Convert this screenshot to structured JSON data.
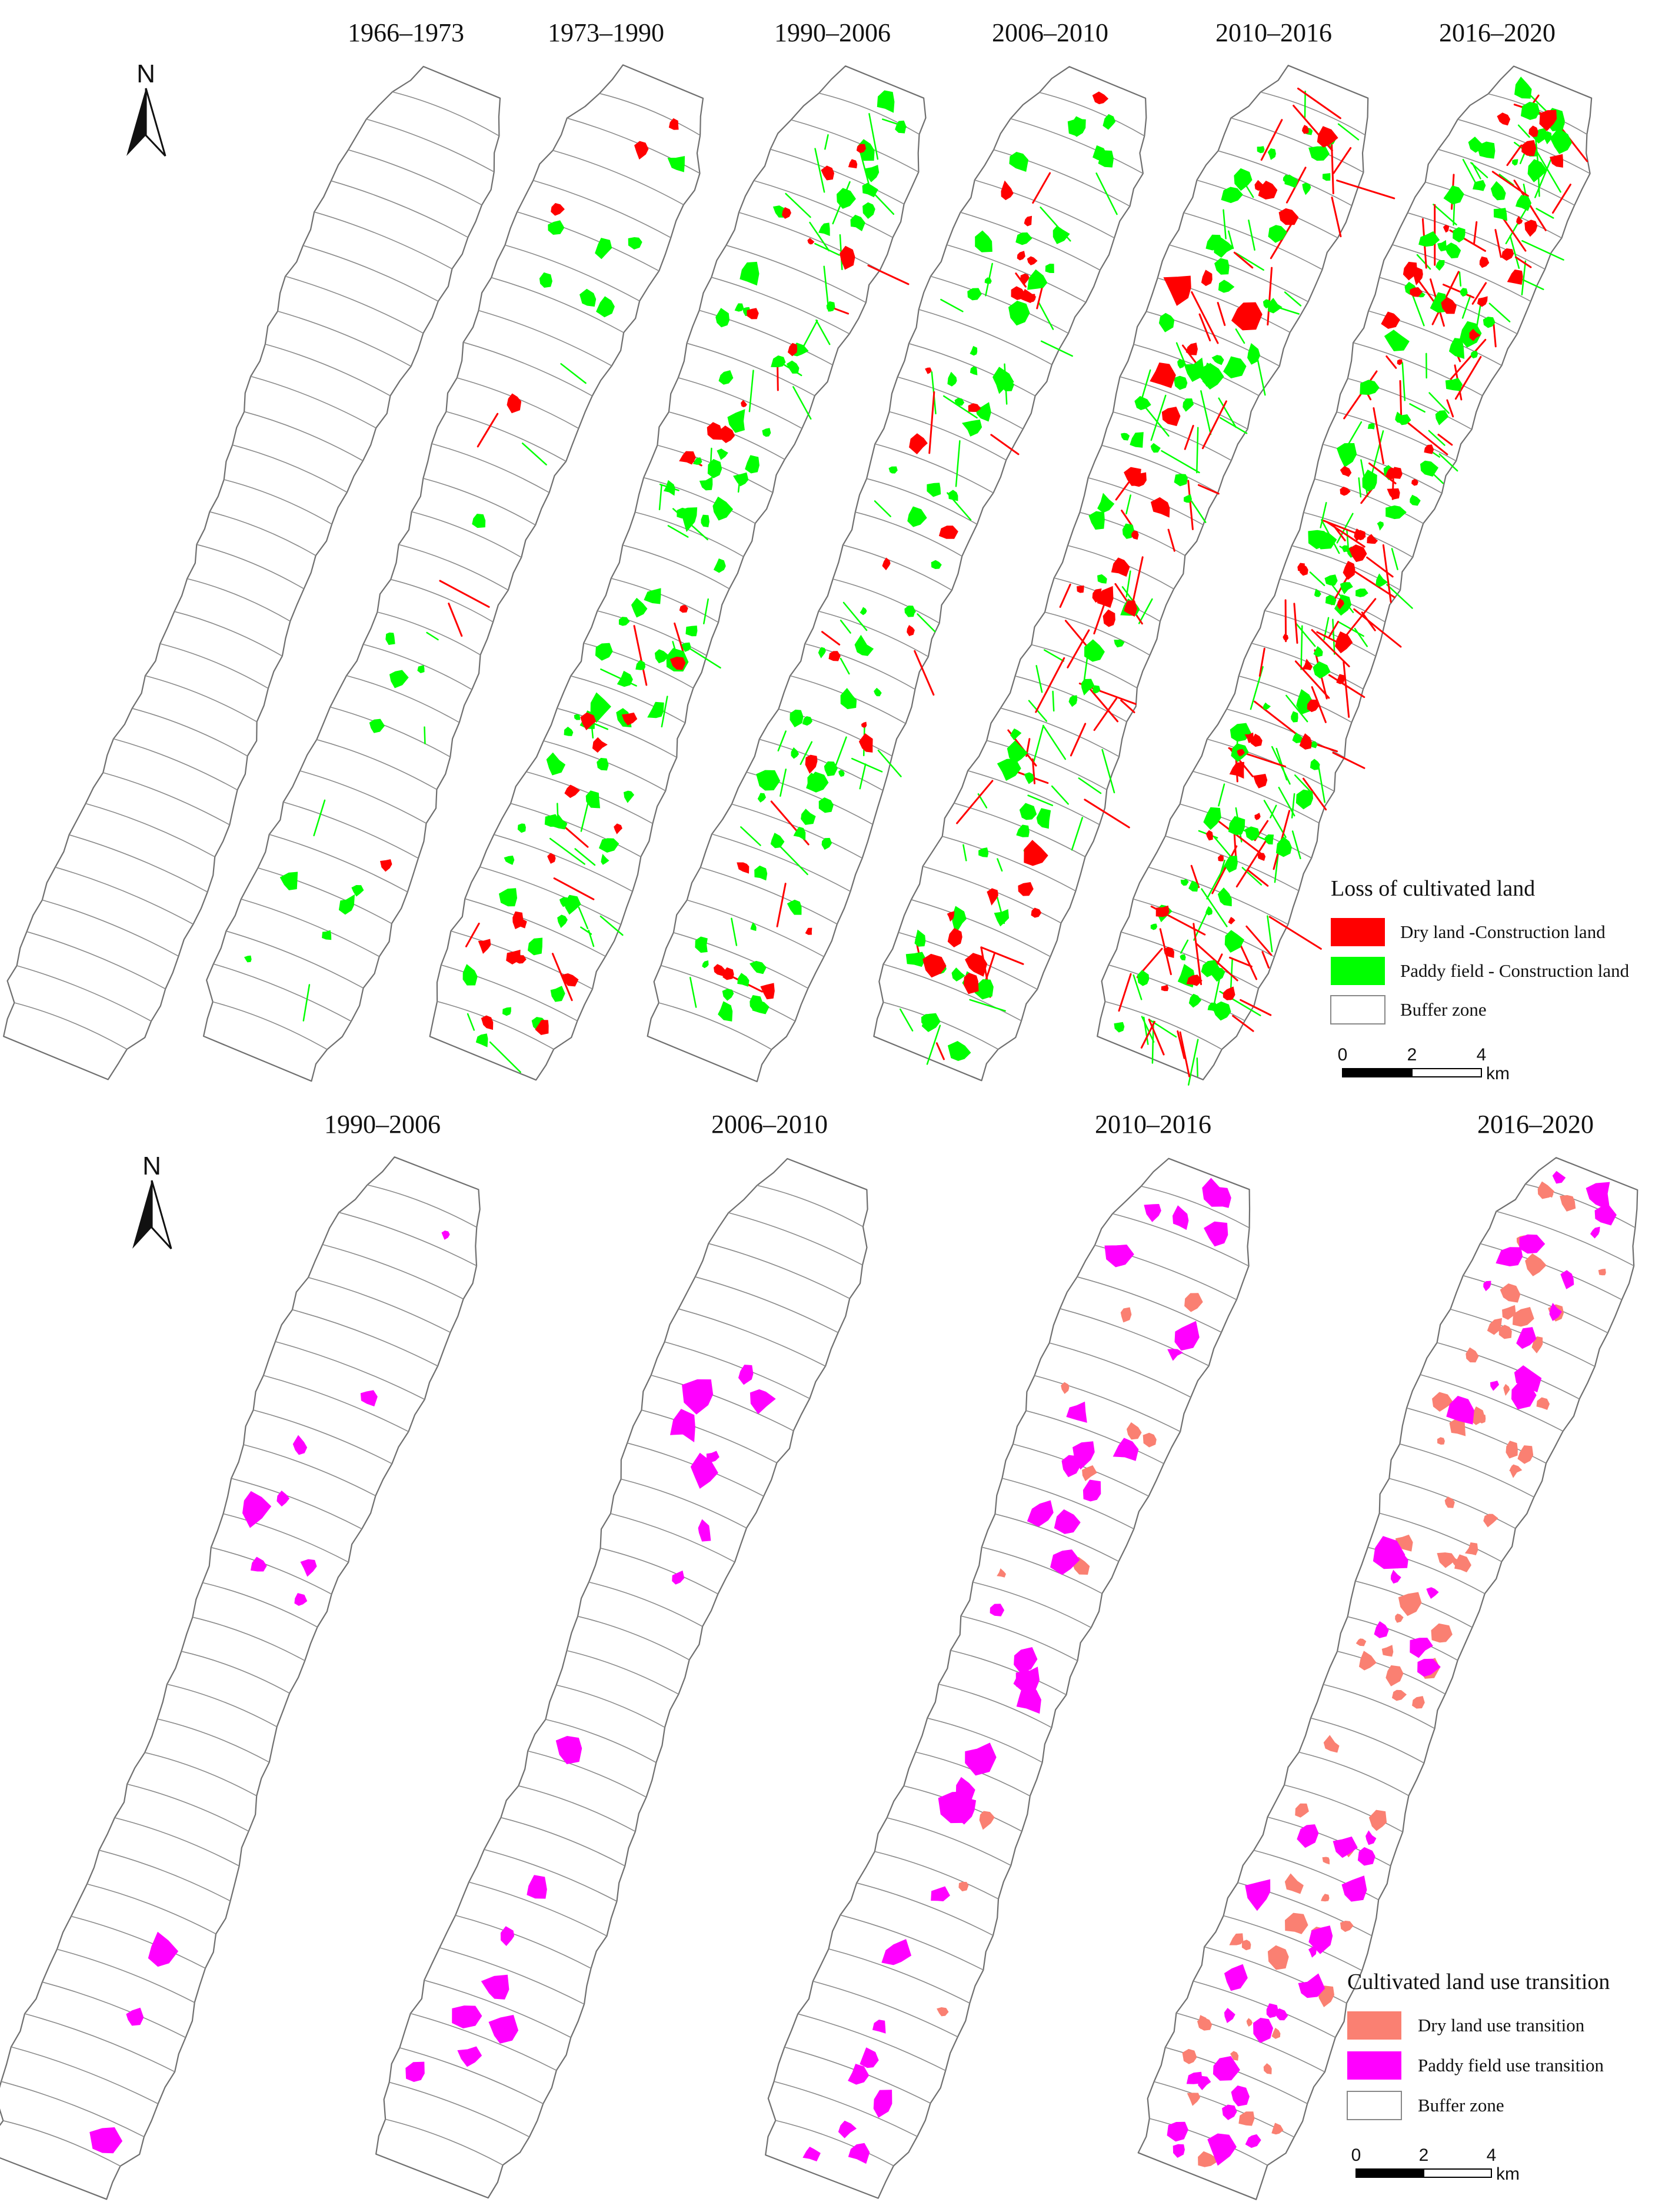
{
  "colors": {
    "dry_loss": "#ff0000",
    "paddy_loss": "#00ff00",
    "dry_transition": "#fa8072",
    "paddy_transition": "#ff00ff",
    "buffer_outline": "#6f6f6f"
  },
  "north_arrow": {
    "label": "N",
    "icon": "north-arrow-icon"
  },
  "top_panel": {
    "periods": [
      {
        "label": "1966–1973",
        "dry_patches": 0,
        "paddy_patches": 0,
        "dry_lines": 0,
        "paddy_lines": 0
      },
      {
        "label": "1973–1990",
        "dry_patches": 5,
        "paddy_patches": 18,
        "dry_lines": 3,
        "paddy_lines": 6
      },
      {
        "label": "1990–2006",
        "dry_patches": 28,
        "paddy_patches": 70,
        "dry_lines": 10,
        "paddy_lines": 40
      },
      {
        "label": "2006–2010",
        "dry_patches": 24,
        "paddy_patches": 60,
        "dry_lines": 10,
        "paddy_lines": 28
      },
      {
        "label": "2010–2016",
        "dry_patches": 30,
        "paddy_patches": 70,
        "dry_lines": 45,
        "paddy_lines": 45
      },
      {
        "label": "2016–2020",
        "dry_patches": 55,
        "paddy_patches": 90,
        "dry_lines": 90,
        "paddy_lines": 90
      }
    ],
    "legend": {
      "title": "Loss of cultivated land",
      "items": [
        {
          "label": "Dry land -Construction land",
          "color": "#ff0000",
          "swatch": "filled"
        },
        {
          "label": "Paddy field - Construction land",
          "color": "#00ff00",
          "swatch": "filled"
        },
        {
          "label": "Buffer zone",
          "color": "#ffffff",
          "swatch": "outline"
        }
      ]
    },
    "scale_bar": {
      "ticks": [
        "0",
        "2",
        "4"
      ],
      "unit": "km"
    }
  },
  "bottom_panel": {
    "periods": [
      {
        "label": "1990–2006",
        "dry_patches": 0,
        "paddy_patches": 11
      },
      {
        "label": "2006–2010",
        "dry_patches": 0,
        "paddy_patches": 16
      },
      {
        "label": "2010–2016",
        "dry_patches": 12,
        "paddy_patches": 34
      },
      {
        "label": "2016–2020",
        "dry_patches": 70,
        "paddy_patches": 45
      }
    ],
    "legend": {
      "title": "Cultivated land use transition",
      "items": [
        {
          "label": "Dry land use transition",
          "color": "#fa8072",
          "swatch": "filled"
        },
        {
          "label": "Paddy field use transition",
          "color": "#ff00ff",
          "swatch": "filled"
        },
        {
          "label": "Buffer zone",
          "color": "#ffffff",
          "swatch": "outline"
        }
      ]
    },
    "scale_bar": {
      "ticks": [
        "0",
        "2",
        "4"
      ],
      "unit": "km"
    }
  }
}
